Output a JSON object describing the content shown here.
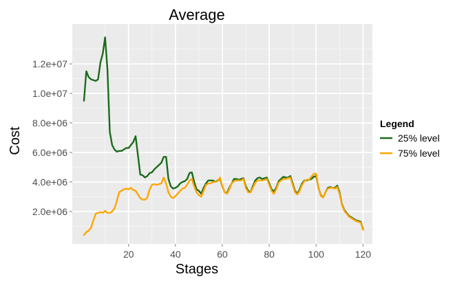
{
  "chart_data": {
    "type": "line",
    "title": "Average",
    "xlabel": "Stages",
    "ylabel": "Cost",
    "xlim": [
      -4,
      124
    ],
    "ylim": [
      -200000,
      14700000
    ],
    "x_ticks": [
      20,
      40,
      60,
      80,
      100,
      120
    ],
    "x_tick_labels": [
      "20",
      "40",
      "60",
      "80",
      "100",
      "120"
    ],
    "y_ticks": [
      2000000,
      4000000,
      6000000,
      8000000,
      10000000,
      12000000
    ],
    "y_tick_labels": [
      "2.0e+06",
      "4.0e+06",
      "6.0e+06",
      "8.0e+06",
      "1.0e+07",
      "1.2e+07"
    ],
    "grid": true,
    "panel_color": "#ebebeb",
    "legend": {
      "title": "Legend",
      "position": "right"
    },
    "series": [
      {
        "name": "25% level",
        "color": "#1a6b1a",
        "x": [
          1,
          2,
          3,
          4,
          5,
          6,
          7,
          8,
          9,
          10,
          11,
          12,
          13,
          14,
          15,
          16,
          17,
          18,
          19,
          20,
          21,
          22,
          23,
          24,
          25,
          26,
          27,
          28,
          29,
          30,
          31,
          32,
          33,
          34,
          35,
          36,
          37,
          38,
          39,
          40,
          41,
          42,
          43,
          44,
          45,
          46,
          47,
          48,
          49,
          50,
          51,
          52,
          53,
          54,
          55,
          56,
          57,
          58,
          59,
          60,
          61,
          62,
          63,
          64,
          65,
          66,
          67,
          68,
          69,
          70,
          71,
          72,
          73,
          74,
          75,
          76,
          77,
          78,
          79,
          80,
          81,
          82,
          83,
          84,
          85,
          86,
          87,
          88,
          89,
          90,
          91,
          92,
          93,
          94,
          95,
          96,
          97,
          98,
          99,
          100,
          101,
          102,
          103,
          104,
          105,
          106,
          107,
          108,
          109,
          110,
          111,
          112,
          113,
          114,
          115,
          116,
          117,
          118,
          119,
          120
        ],
        "y": [
          9500000,
          11500000,
          11100000,
          10950000,
          10900000,
          10850000,
          10950000,
          12100000,
          12700000,
          13800000,
          11600000,
          7400000,
          6500000,
          6200000,
          6050000,
          6100000,
          6100000,
          6200000,
          6300000,
          6300000,
          6500000,
          6700000,
          7100000,
          5800000,
          4500000,
          4450000,
          4300000,
          4400000,
          4600000,
          4650000,
          4850000,
          5000000,
          5150000,
          5300000,
          5700000,
          5700000,
          4200000,
          3700000,
          3550000,
          3600000,
          3700000,
          3900000,
          4000000,
          4050000,
          4200000,
          4600000,
          4650000,
          4000000,
          3500000,
          3400000,
          3200000,
          3600000,
          3900000,
          4100000,
          4100000,
          4100000,
          4000000,
          4100000,
          4200000,
          3700000,
          3300000,
          3250000,
          3600000,
          3900000,
          4200000,
          4200000,
          4150000,
          4200000,
          4250000,
          3700000,
          3400000,
          3300000,
          3700000,
          4100000,
          4250000,
          4300000,
          4200000,
          4250000,
          4300000,
          3900000,
          3500000,
          3350000,
          3600000,
          4050000,
          4200000,
          4350000,
          4300000,
          4300000,
          4400000,
          3900000,
          3400000,
          3200000,
          3500000,
          3900000,
          4100000,
          4100000,
          4150000,
          4200000,
          4350000,
          4400000,
          3600000,
          3100000,
          2950000,
          3300000,
          3600000,
          3650000,
          3600000,
          3600000,
          3750000,
          3300000,
          2500000,
          2100000,
          1900000,
          1700000,
          1600000,
          1500000,
          1400000,
          1350000,
          1300000,
          800000
        ]
      },
      {
        "name": "75% level",
        "color": "#ffa500",
        "x": [
          1,
          2,
          3,
          4,
          5,
          6,
          7,
          8,
          9,
          10,
          11,
          12,
          13,
          14,
          15,
          16,
          17,
          18,
          19,
          20,
          21,
          22,
          23,
          24,
          25,
          26,
          27,
          28,
          29,
          30,
          31,
          32,
          33,
          34,
          35,
          36,
          37,
          38,
          39,
          40,
          41,
          42,
          43,
          44,
          45,
          46,
          47,
          48,
          49,
          50,
          51,
          52,
          53,
          54,
          55,
          56,
          57,
          58,
          59,
          60,
          61,
          62,
          63,
          64,
          65,
          66,
          67,
          68,
          69,
          70,
          71,
          72,
          73,
          74,
          75,
          76,
          77,
          78,
          79,
          80,
          81,
          82,
          83,
          84,
          85,
          86,
          87,
          88,
          89,
          90,
          91,
          92,
          93,
          94,
          95,
          96,
          97,
          98,
          99,
          100,
          101,
          102,
          103,
          104,
          105,
          106,
          107,
          108,
          109,
          110,
          111,
          112,
          113,
          114,
          115,
          116,
          117,
          118,
          119,
          120
        ],
        "y": [
          400000,
          600000,
          700000,
          900000,
          1400000,
          1850000,
          1900000,
          1950000,
          1900000,
          2050000,
          1900000,
          1900000,
          2000000,
          2200000,
          2700000,
          3300000,
          3400000,
          3500000,
          3550000,
          3500000,
          3600000,
          3450000,
          3400000,
          3150000,
          2900000,
          2800000,
          2800000,
          2950000,
          3500000,
          3800000,
          3850000,
          3800000,
          3850000,
          3900000,
          4300000,
          3900000,
          3300000,
          3000000,
          2900000,
          3050000,
          3200000,
          3400000,
          3550000,
          3600000,
          3800000,
          4100000,
          4200000,
          3700000,
          3300000,
          3100000,
          3000000,
          3400000,
          3800000,
          3900000,
          3900000,
          4000000,
          4000000,
          4050000,
          4300000,
          3700000,
          3300000,
          3200000,
          3500000,
          3900000,
          4050000,
          4100000,
          4100000,
          4100000,
          4200000,
          3600000,
          3300000,
          3300000,
          3600000,
          3950000,
          4100000,
          4100000,
          4100000,
          4150000,
          4200000,
          3800000,
          3400000,
          3200000,
          3500000,
          3950000,
          4100000,
          4200000,
          4200000,
          4250000,
          4300000,
          3800000,
          3300000,
          3150000,
          3400000,
          3800000,
          4050000,
          4150000,
          4150000,
          4350000,
          4550000,
          4550000,
          3600000,
          3050000,
          2950000,
          3300000,
          3550000,
          3600000,
          3600000,
          3550000,
          3650000,
          3200000,
          2450000,
          2050000,
          1850000,
          1650000,
          1550000,
          1450000,
          1350000,
          1300000,
          1250000,
          750000
        ]
      }
    ]
  }
}
